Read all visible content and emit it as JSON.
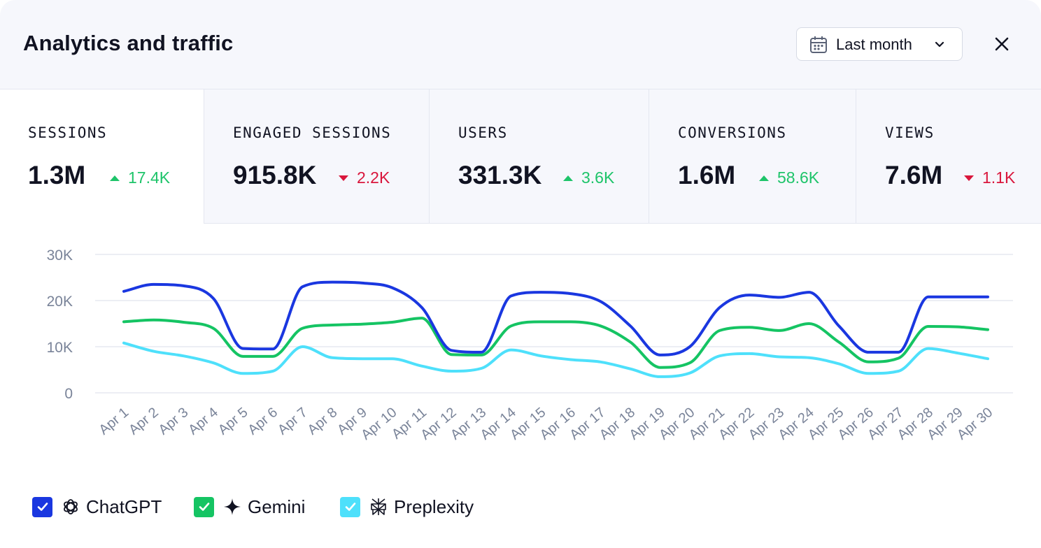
{
  "header": {
    "title": "Analytics and traffic",
    "date_range": "Last month",
    "icons": {
      "calendar": "calendar-icon",
      "chevron": "chevron-down-icon",
      "close": "close-icon"
    }
  },
  "metrics": [
    {
      "label": "SESSIONS",
      "value": "1.3M",
      "delta": "17.4K",
      "direction": "up",
      "active": true
    },
    {
      "label": "ENGAGED SESSIONS",
      "value": "915.8K",
      "delta": "2.2K",
      "direction": "down",
      "active": false
    },
    {
      "label": "USERS",
      "value": "331.3K",
      "delta": "3.6K",
      "direction": "up",
      "active": false
    },
    {
      "label": "CONVERSIONS",
      "value": "1.6M",
      "delta": "58.6K",
      "direction": "up",
      "active": false
    },
    {
      "label": "VIEWS",
      "value": "7.6M",
      "delta": "1.1K",
      "direction": "down",
      "active": false
    }
  ],
  "colors": {
    "up": "#1ec46a",
    "down": "#d9163c",
    "grid": "#e6e9f0",
    "tick": "#7a8499"
  },
  "chart_data": {
    "type": "line",
    "x": [
      "Apr 1",
      "Apr 2",
      "Apr 3",
      "Apr 4",
      "Apr 5",
      "Apr 6",
      "Apr 7",
      "Apr 8",
      "Apr 9",
      "Apr 10",
      "Apr 11",
      "Apr 12",
      "Apr 13",
      "Apr 14",
      "Apr 15",
      "Apr 16",
      "Apr 17",
      "Apr 18",
      "Apr 19",
      "Apr 20",
      "Apr 21",
      "Apr 22",
      "Apr 23",
      "Apr 24",
      "Apr 25",
      "Apr 26",
      "Apr 27",
      "Apr 28",
      "Apr 29",
      "Apr 30"
    ],
    "yticks": [
      0,
      10000,
      20000,
      30000
    ],
    "ytick_labels": [
      "0",
      "10K",
      "20K",
      "30K"
    ],
    "ylim": [
      0,
      30000
    ],
    "grid": true,
    "legend_position": "bottom-left",
    "series": [
      {
        "name": "ChatGPT",
        "color": "#1a37e0",
        "checked": true,
        "icon": "openai-icon",
        "values": [
          22000,
          23500,
          23200,
          20500,
          9600,
          9500,
          23000,
          24000,
          23800,
          22800,
          18500,
          9200,
          8800,
          21000,
          21800,
          21500,
          19800,
          14500,
          8200,
          10000,
          18500,
          21200,
          20700,
          21800,
          14500,
          8800,
          8800,
          20800,
          20800,
          20800
        ]
      },
      {
        "name": "Gemini",
        "color": "#15c463",
        "checked": true,
        "icon": "sparkle-icon",
        "values": [
          15400,
          15800,
          15300,
          14000,
          7900,
          7900,
          14000,
          14700,
          14900,
          15300,
          16200,
          8300,
          8200,
          14500,
          15400,
          15400,
          14500,
          11000,
          5500,
          6500,
          13500,
          14200,
          13500,
          15000,
          11000,
          6700,
          7500,
          14400,
          14300,
          13700
        ]
      },
      {
        "name": "Preplexity",
        "color": "#4ee0fb",
        "checked": true,
        "icon": "perplexity-icon",
        "values": [
          10800,
          9000,
          8000,
          6500,
          4200,
          4700,
          10000,
          7600,
          7400,
          7400,
          5800,
          4700,
          5300,
          9300,
          8000,
          7200,
          6700,
          5200,
          3500,
          4300,
          8000,
          8500,
          7800,
          7600,
          6300,
          4200,
          4700,
          9600,
          8600,
          7400
        ]
      }
    ]
  }
}
